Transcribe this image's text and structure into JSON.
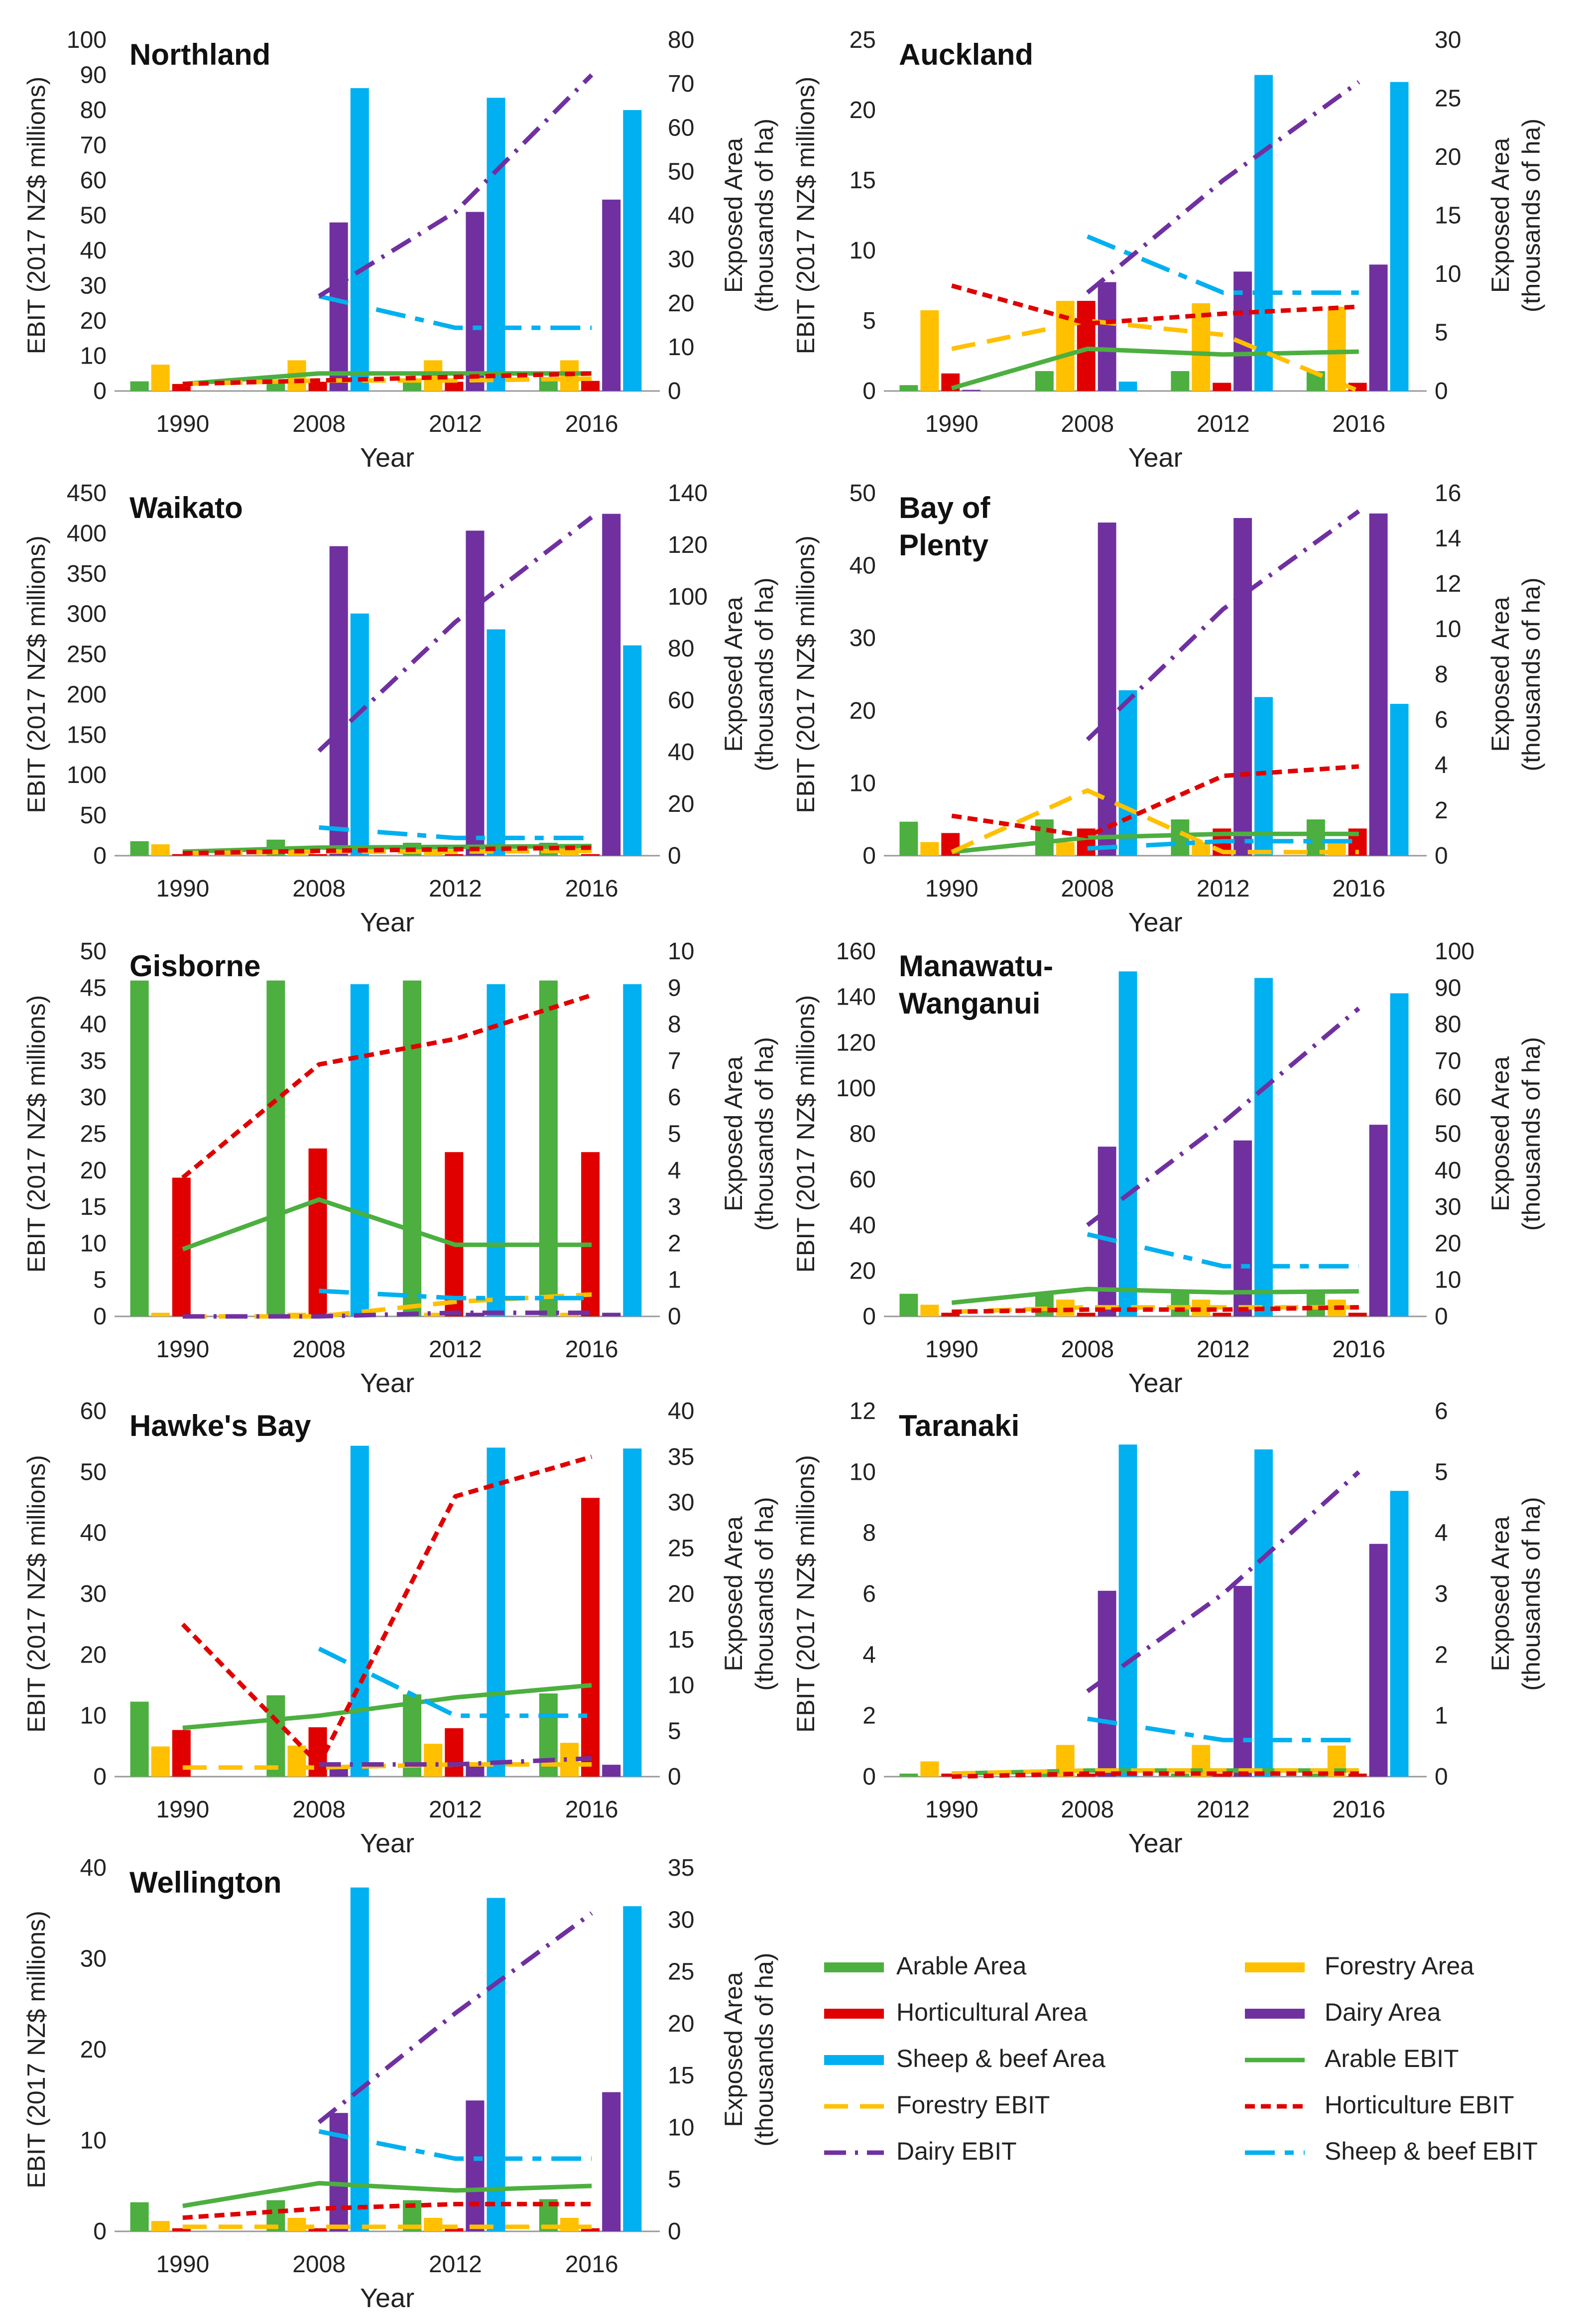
{
  "colors": {
    "arable": "#4CAF3F",
    "forestry": "#FFC000",
    "horticultural": "#E00000",
    "dairy": "#7030A0",
    "sheep_beef": "#00B0F0"
  },
  "legend": {
    "arable_area": "Arable Area",
    "forestry_area": "Forestry Area",
    "horticultural_area": "Horticultural Area",
    "dairy_area": "Dairy Area",
    "sheep_beef_area": "Sheep & beef Area",
    "arable_ebit": "Arable EBIT",
    "forestry_ebit": "Forestry EBIT",
    "horticulture_ebit": "Horticulture EBIT",
    "dairy_ebit": "Dairy EBIT",
    "sheep_beef_ebit": "Sheep & beef EBIT"
  },
  "chart_data": [
    {
      "type": "bar+line",
      "title": "Northland",
      "xlabel": "Year",
      "ylabel": "EBIT (2017 NZ$ millions)",
      "y2label": [
        "Exposed Area",
        "(thousands of ha)"
      ],
      "categories": [
        "1990",
        "2008",
        "2012",
        "2016"
      ],
      "ylim": [
        0,
        100
      ],
      "yticks": [
        0,
        10,
        20,
        30,
        40,
        50,
        60,
        70,
        80,
        90,
        100
      ],
      "y2lim": [
        0,
        80
      ],
      "y2ticks": [
        0,
        10,
        20,
        30,
        40,
        50,
        60,
        70,
        80
      ],
      "area": {
        "arable": [
          2.2,
          2.4,
          2.5,
          3.2
        ],
        "horticultural": [
          1.6,
          2.1,
          2.1,
          2.3
        ],
        "forestry": [
          6,
          7,
          7,
          7
        ],
        "dairy": [
          null,
          38.4,
          40.8,
          43.6
        ],
        "sheep_beef": [
          null,
          69,
          66.8,
          64
        ]
      },
      "ebit": {
        "arable": [
          2,
          5,
          5,
          5
        ],
        "forestry": [
          2,
          3,
          3,
          3.5
        ],
        "horticulture": [
          2,
          3,
          4,
          5
        ],
        "dairy": [
          null,
          27,
          51,
          90
        ],
        "sheep_beef": [
          null,
          27,
          18,
          18
        ]
      }
    },
    {
      "type": "bar+line",
      "title": "Auckland",
      "xlabel": "Year",
      "ylabel": "EBIT (2017 NZ$ millions)",
      "y2label": [
        "Exposed Area",
        "(thousands of ha)"
      ],
      "categories": [
        "1990",
        "2008",
        "2012",
        "2016"
      ],
      "ylim": [
        0,
        25
      ],
      "yticks": [
        0,
        5,
        10,
        15,
        20,
        25
      ],
      "y2lim": [
        0,
        30
      ],
      "y2ticks": [
        0,
        5,
        10,
        15,
        20,
        25,
        30
      ],
      "area": {
        "arable": [
          0.5,
          1.7,
          1.7,
          1.7
        ],
        "forestry": [
          6.9,
          7.7,
          7.5,
          7.2
        ],
        "horticultural": [
          1.5,
          7.7,
          0.7,
          0.7
        ],
        "dairy": [
          0.1,
          9.3,
          10.2,
          10.8
        ],
        "sheep_beef": [
          null,
          0.8,
          27,
          26.4
        ]
      },
      "ebit": {
        "arable": [
          0.2,
          3,
          2.6,
          2.8
        ],
        "forestry": [
          3,
          5,
          4,
          0
        ],
        "horticulture": [
          7.5,
          4.8,
          5.5,
          6
        ],
        "dairy": [
          null,
          7,
          15,
          22
        ],
        "sheep_beef": [
          null,
          11,
          7,
          7
        ]
      }
    },
    {
      "type": "bar+line",
      "title": "Waikato",
      "xlabel": "Year",
      "ylabel": "EBIT (2017 NZ$ millions)",
      "y2label": [
        "Exposed Area",
        "(thousands of ha)"
      ],
      "categories": [
        "1990",
        "2008",
        "2012",
        "2016"
      ],
      "ylim": [
        0,
        450
      ],
      "yticks": [
        0,
        50,
        100,
        150,
        200,
        250,
        300,
        350,
        400,
        450
      ],
      "y2lim": [
        0,
        140
      ],
      "y2ticks": [
        0,
        20,
        40,
        60,
        80,
        100,
        120,
        140
      ],
      "area": {
        "arable": [
          5.6,
          6.2,
          5.0,
          5.0
        ],
        "forestry": [
          4.4,
          3.7,
          3.4,
          3.1
        ],
        "horticultural": [
          0.6,
          0.6,
          0.6,
          0.6
        ],
        "dairy": [
          null,
          119.5,
          125.5,
          132
        ],
        "sheep_beef": [
          null,
          93.5,
          87.4,
          81.2
        ]
      },
      "ebit": {
        "arable": [
          5,
          10,
          11,
          12
        ],
        "forestry": [
          3,
          5,
          5,
          6
        ],
        "horticulture": [
          3,
          6,
          8,
          10
        ],
        "dairy": [
          null,
          130,
          290,
          420
        ],
        "sheep_beef": [
          null,
          35,
          22,
          22
        ]
      }
    },
    {
      "type": "bar+line",
      "title": "Bay of\nPlenty",
      "xlabel": "Year",
      "ylabel": "EBIT (2017 NZ$ millions)",
      "y2label": [
        "Exposed Area",
        "(thousands of ha)"
      ],
      "categories": [
        "1990",
        "2008",
        "2012",
        "2016"
      ],
      "ylim": [
        0,
        50
      ],
      "yticks": [
        0,
        10,
        20,
        30,
        40,
        50
      ],
      "y2lim": [
        0,
        16
      ],
      "y2ticks": [
        0,
        2,
        4,
        6,
        8,
        10,
        12,
        14,
        16
      ],
      "area": {
        "arable": [
          1.5,
          1.6,
          1.6,
          1.6
        ],
        "forestry": [
          0.6,
          0.6,
          0.6,
          0.6
        ],
        "horticultural": [
          1.0,
          1.2,
          1.2,
          1.2
        ],
        "dairy": [
          null,
          14.7,
          14.9,
          15.1
        ],
        "sheep_beef": [
          null,
          7.3,
          7.0,
          6.7
        ]
      },
      "ebit": {
        "arable": [
          0.5,
          2.5,
          3,
          3
        ],
        "forestry": [
          0.5,
          9,
          0.5,
          0.5
        ],
        "horticulture": [
          5.5,
          2.7,
          11,
          12.3
        ],
        "dairy": [
          null,
          16,
          34,
          47.5
        ],
        "sheep_beef": [
          null,
          1,
          2,
          2
        ]
      }
    },
    {
      "type": "bar+line",
      "title": "Gisborne",
      "xlabel": "Year",
      "ylabel": "EBIT (2017 NZ$ millions)",
      "y2label": [
        "Exposed Area",
        "(thousands of ha)"
      ],
      "categories": [
        "1990",
        "2008",
        "2012",
        "2016"
      ],
      "ylim": [
        0,
        50
      ],
      "yticks": [
        0,
        5,
        10,
        15,
        20,
        25,
        30,
        35,
        40,
        45,
        50
      ],
      "y2lim": [
        0,
        10
      ],
      "y2ticks": [
        0,
        1,
        2,
        3,
        4,
        5,
        6,
        7,
        8,
        9,
        10
      ],
      "area": {
        "arable": [
          9.2,
          9.2,
          9.2,
          9.2
        ],
        "forestry": [
          0.1,
          0.1,
          0.1,
          0.1
        ],
        "horticultural": [
          3.8,
          4.6,
          4.5,
          4.5
        ],
        "dairy": [
          null,
          0.1,
          0.1,
          0.1
        ],
        "sheep_beef": [
          null,
          9.1,
          9.1,
          9.1
        ]
      },
      "ebit": {
        "arable": [
          9.2,
          16,
          9.8,
          9.8
        ],
        "forestry": [
          0,
          0,
          2,
          3
        ],
        "horticulture": [
          19,
          34.5,
          38,
          44
        ],
        "dairy": [
          0,
          0,
          0.5,
          0.5
        ],
        "sheep_beef": [
          null,
          3.5,
          2.5,
          2.5
        ]
      }
    },
    {
      "type": "bar+line",
      "title": "Manawatu-\nWanganui",
      "xlabel": "Year",
      "ylabel": "EBIT (2017 NZ$ millions)",
      "y2label": [
        "Exposed Area",
        "(thousands of ha)"
      ],
      "categories": [
        "1990",
        "2008",
        "2012",
        "2016"
      ],
      "ylim": [
        0,
        160
      ],
      "yticks": [
        0,
        20,
        40,
        60,
        80,
        100,
        120,
        140,
        160
      ],
      "y2lim": [
        0,
        100
      ],
      "y2ticks": [
        0,
        10,
        20,
        30,
        40,
        50,
        60,
        70,
        80,
        90,
        100
      ],
      "area": {
        "arable": [
          6.2,
          6.4,
          6.3,
          6.3
        ],
        "forestry": [
          3.2,
          4.6,
          4.6,
          4.6
        ],
        "horticultural": [
          1.0,
          1.0,
          1.0,
          1.0
        ],
        "dairy": [
          null,
          46.5,
          48.2,
          52.5
        ],
        "sheep_beef": [
          null,
          94.5,
          92.7,
          88.5
        ]
      },
      "ebit": {
        "arable": [
          6,
          12,
          10.5,
          11
        ],
        "forestry": [
          2,
          4,
          4,
          4
        ],
        "horticulture": [
          2,
          3,
          3,
          4
        ],
        "dairy": [
          null,
          40,
          85,
          135
        ],
        "sheep_beef": [
          null,
          36,
          22,
          22
        ]
      }
    },
    {
      "type": "bar+line",
      "title": "Hawke's Bay",
      "xlabel": "Year",
      "ylabel": "EBIT (2017 NZ$ millions)",
      "y2label": [
        "Exposed Area",
        "(thousands of ha)"
      ],
      "categories": [
        "1990",
        "2008",
        "2012",
        "2016"
      ],
      "ylim": [
        0,
        60
      ],
      "yticks": [
        0,
        10,
        20,
        30,
        40,
        50,
        60
      ],
      "y2lim": [
        0,
        40
      ],
      "y2ticks": [
        0,
        5,
        10,
        15,
        20,
        25,
        30,
        35,
        40
      ],
      "area": {
        "arable": [
          8.2,
          8.9,
          9.0,
          9.1
        ],
        "forestry": [
          3.3,
          3.4,
          3.6,
          3.7
        ],
        "horticultural": [
          5.1,
          5.4,
          5.3,
          30.5
        ],
        "dairy": [
          null,
          1.1,
          1.2,
          1.3
        ],
        "sheep_beef": [
          null,
          36.2,
          36.0,
          35.9
        ]
      },
      "ebit": {
        "arable": [
          8,
          10,
          13,
          15
        ],
        "forestry": [
          1.5,
          1.5,
          2,
          2
        ],
        "horticulture": [
          25,
          2,
          46,
          52.5
        ],
        "dairy": [
          null,
          2,
          2,
          3
        ],
        "sheep_beef": [
          null,
          21,
          10,
          10
        ]
      }
    },
    {
      "type": "bar+line",
      "title": "Taranaki",
      "xlabel": "Year",
      "ylabel": "EBIT (2017 NZ$ millions)",
      "y2label": [
        "Exposed Area",
        "(thousands of ha)"
      ],
      "categories": [
        "1990",
        "2008",
        "2012",
        "2016"
      ],
      "ylim": [
        0,
        12
      ],
      "yticks": [
        0,
        2,
        4,
        6,
        8,
        10,
        12
      ],
      "y2lim": [
        0,
        6
      ],
      "y2ticks": [
        0,
        1,
        2,
        3,
        4,
        5,
        6
      ],
      "area": {
        "arable": [
          0.05,
          0.05,
          0.05,
          0.05
        ],
        "forestry": [
          0.25,
          0.52,
          0.52,
          0.51
        ],
        "horticultural": [
          0.05,
          0.05,
          0.05,
          0.05
        ],
        "dairy": [
          null,
          3.05,
          3.13,
          3.82
        ],
        "sheep_beef": [
          null,
          5.45,
          5.37,
          4.69
        ]
      },
      "ebit": {
        "arable": [
          0.1,
          0.2,
          0.2,
          0.2
        ],
        "forestry": [
          0.1,
          0.2,
          0.2,
          0.2
        ],
        "horticulture": [
          0,
          0.1,
          0.1,
          0.1
        ],
        "dairy": [
          null,
          2.8,
          6,
          10
        ],
        "sheep_beef": [
          null,
          1.9,
          1.2,
          1.2
        ]
      }
    },
    {
      "type": "bar+line",
      "title": "Wellington",
      "xlabel": "Year",
      "ylabel": "EBIT (2017 NZ$ millions)",
      "y2label": [
        "Exposed Area",
        "(thousands of ha)"
      ],
      "categories": [
        "1990",
        "2008",
        "2012",
        "2016"
      ],
      "ylim": [
        0,
        40
      ],
      "yticks": [
        0,
        10,
        20,
        30,
        40
      ],
      "y2lim": [
        0,
        35
      ],
      "y2ticks": [
        0,
        5,
        10,
        15,
        20,
        25,
        30,
        35
      ],
      "area": {
        "arable": [
          2.8,
          3.0,
          3.0,
          3.1
        ],
        "forestry": [
          1.0,
          1.3,
          1.3,
          1.3
        ],
        "horticultural": [
          0.3,
          0.3,
          0.3,
          0.3
        ],
        "dairy": [
          null,
          11.4,
          12.6,
          13.4
        ],
        "sheep_beef": [
          null,
          33.1,
          32.1,
          31.3
        ]
      },
      "ebit": {
        "arable": [
          2.8,
          5.3,
          4.5,
          5
        ],
        "forestry": [
          0.5,
          0.5,
          0.5,
          0.5
        ],
        "horticulture": [
          1.5,
          2.5,
          3,
          3
        ],
        "dairy": [
          null,
          12,
          24,
          35
        ],
        "sheep_beef": [
          null,
          11,
          8,
          8
        ]
      }
    }
  ]
}
